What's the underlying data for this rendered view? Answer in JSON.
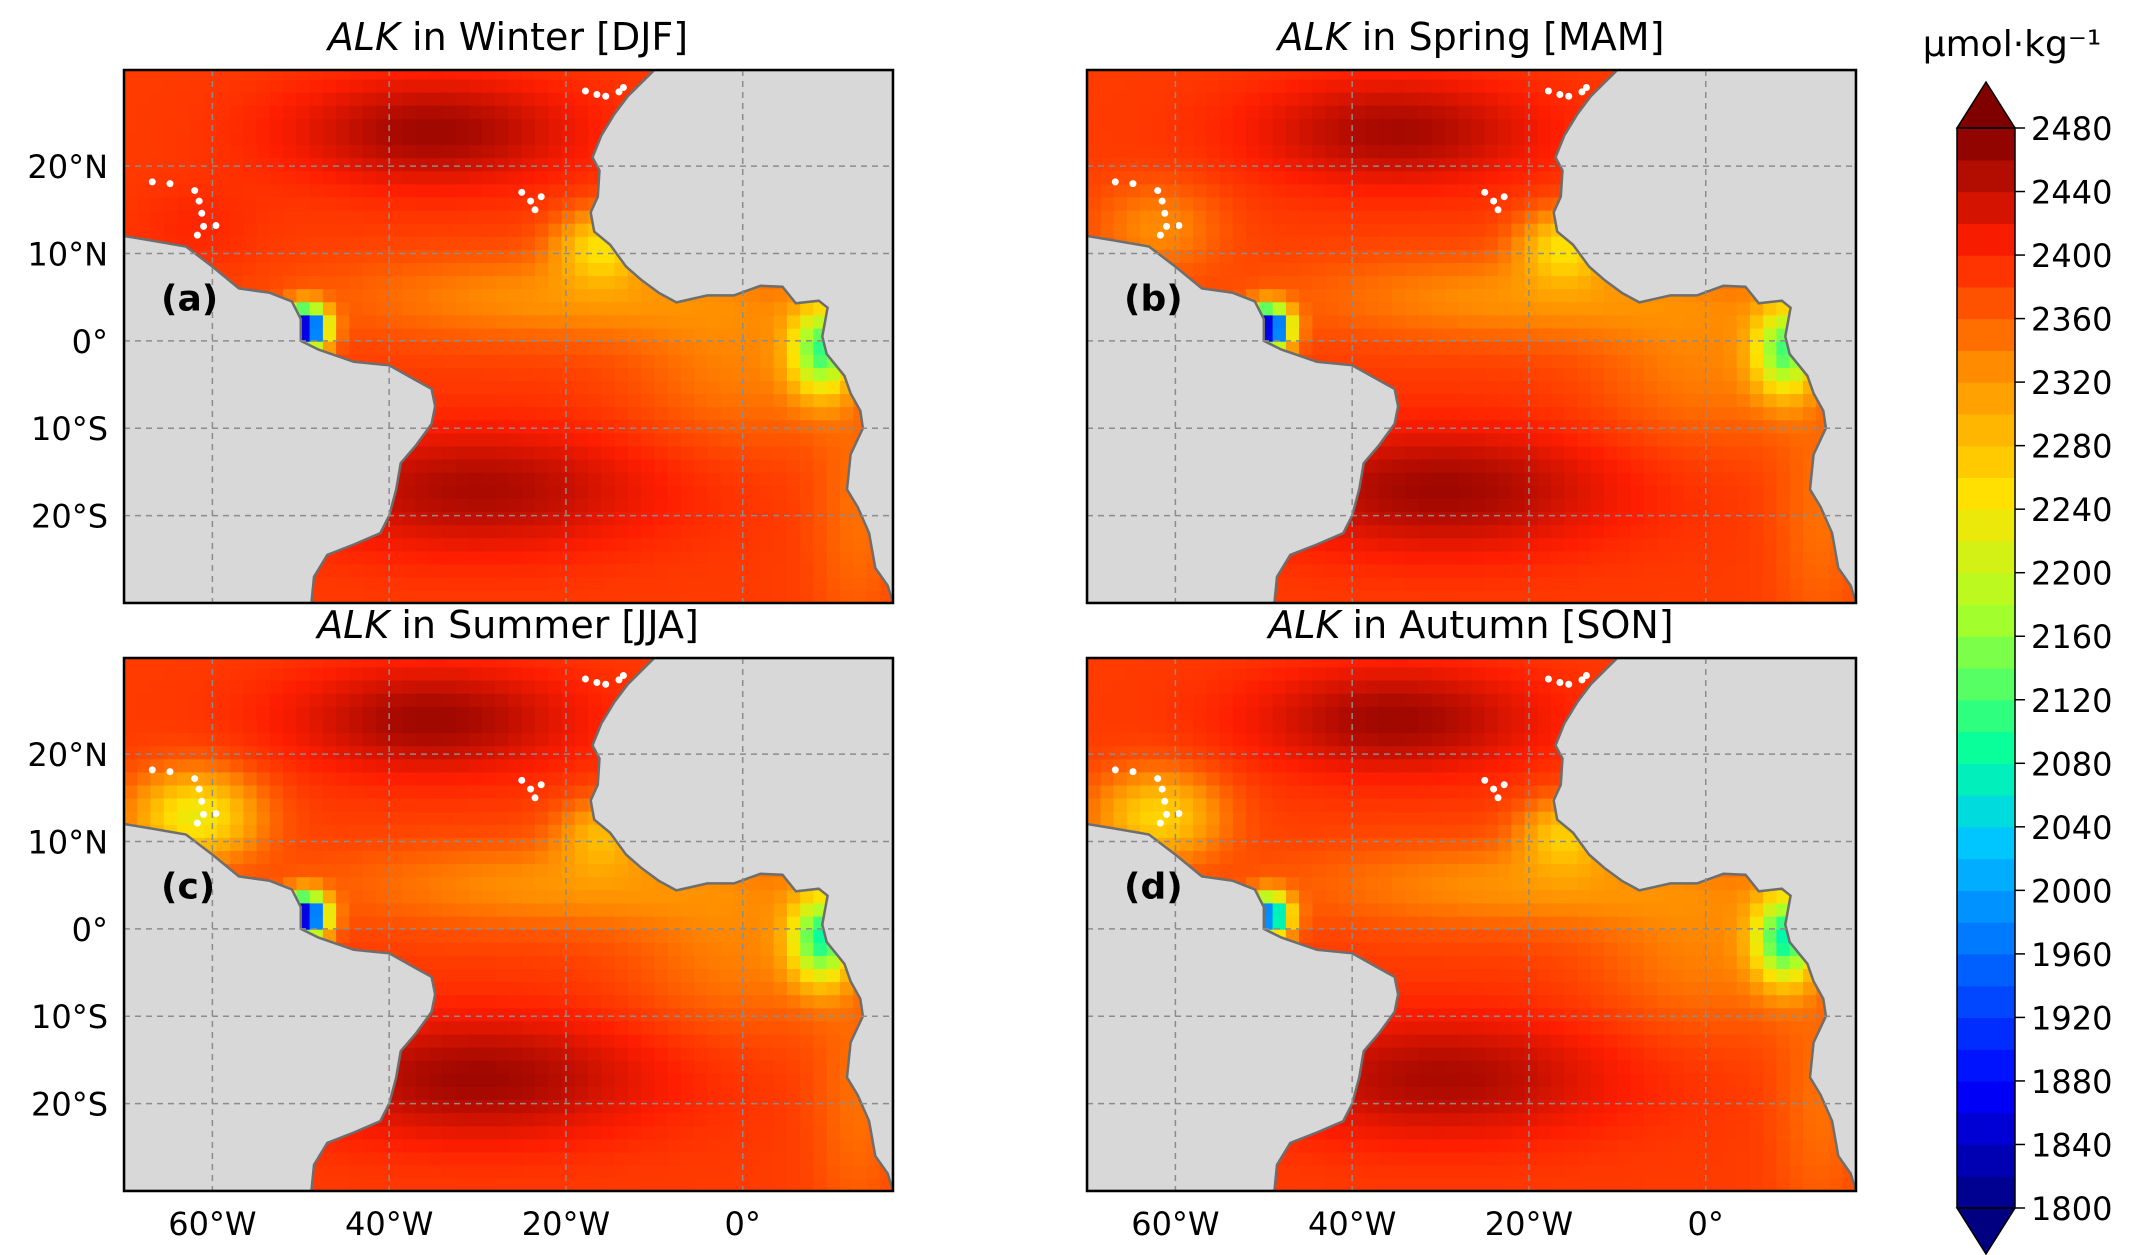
{
  "chart_data": {
    "type": "heatmap",
    "colorbar": {
      "unit_label": "μmol·kg⁻¹",
      "ticks": [
        2480,
        2440,
        2400,
        2360,
        2320,
        2280,
        2240,
        2200,
        2160,
        2120,
        2080,
        2040,
        2000,
        1960,
        1920,
        1880,
        1840,
        1800
      ],
      "range": [
        1800,
        2480
      ],
      "extend": "both",
      "colormap": "jet"
    },
    "colors": {
      "land": "#d8d8d8",
      "coast": "#6e6e6e",
      "grid": "#8c8c8c",
      "ocean_base": "#ff4a0c"
    },
    "axes": {
      "lon_range": [
        -70,
        17
      ],
      "lat_range": [
        -30,
        31
      ],
      "x_ticks": [
        {
          "lon": -60,
          "label": "60°W"
        },
        {
          "lon": -40,
          "label": "40°W"
        },
        {
          "lon": -20,
          "label": "20°W"
        },
        {
          "lon": 0,
          "label": "0°"
        }
      ],
      "y_ticks": [
        {
          "lat": 20,
          "label": "20°N"
        },
        {
          "lat": 10,
          "label": "10°N"
        },
        {
          "lat": 0,
          "label": "0°"
        },
        {
          "lat": -10,
          "label": "10°S"
        },
        {
          "lat": -20,
          "label": "20°S"
        }
      ],
      "grid": true
    },
    "panels": [
      {
        "id": "a",
        "panel_label": "(a)",
        "title_var": "ALK",
        "title_rest": " in Winter [DJF]",
        "basin_max": 2452,
        "north_max": 2462,
        "south_max": 2455,
        "amazon_min": 1810,
        "congo_min": 2140,
        "caribbean_min": 2400,
        "senegal_min": 2260
      },
      {
        "id": "b",
        "panel_label": "(b)",
        "title_var": "ALK",
        "title_rest": " in Spring [MAM]",
        "basin_max": 2452,
        "north_max": 2458,
        "south_max": 2462,
        "amazon_min": 1810,
        "congo_min": 2150,
        "caribbean_min": 2330,
        "senegal_min": 2260
      },
      {
        "id": "c",
        "panel_label": "(c)",
        "title_var": "ALK",
        "title_rest": " in Summer [JJA]",
        "basin_max": 2452,
        "north_max": 2462,
        "south_max": 2462,
        "amazon_min": 1810,
        "congo_min": 2120,
        "caribbean_min": 2230,
        "senegal_min": 2300
      },
      {
        "id": "d",
        "panel_label": "(d)",
        "title_var": "ALK",
        "title_rest": " in Autumn [SON]",
        "basin_max": 2452,
        "north_max": 2462,
        "south_max": 2455,
        "amazon_min": 1950,
        "congo_min": 2110,
        "caribbean_min": 2260,
        "senegal_min": 2280
      }
    ]
  }
}
